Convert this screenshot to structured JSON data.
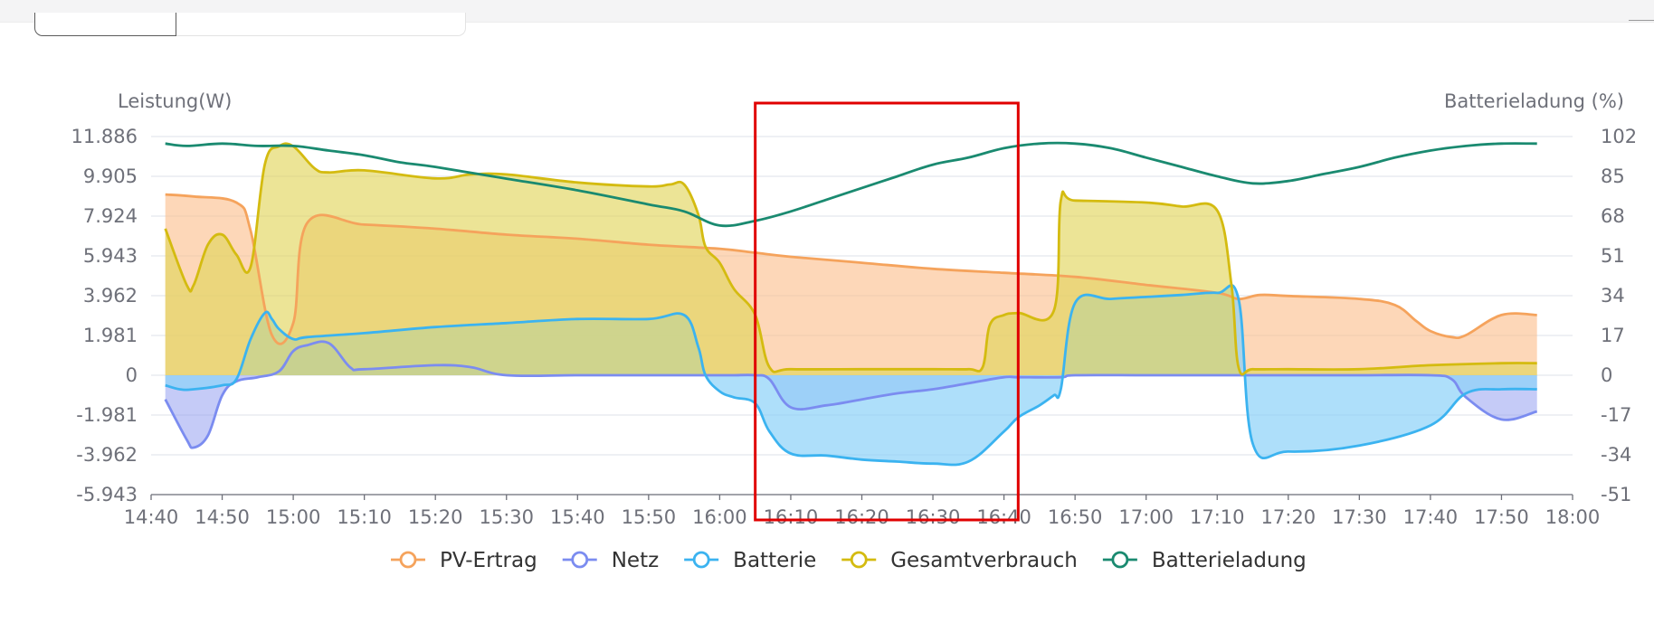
{
  "chart_data": {
    "type": "area",
    "ylabel_left": "Leistung(W)",
    "ylabel_right": "Batterieladung (%)",
    "left_ticks": [
      "11.886",
      "9.905",
      "7.924",
      "5.943",
      "3.962",
      "1.981",
      "0",
      "-1.981",
      "-3.962",
      "-5.943"
    ],
    "right_ticks": [
      "102",
      "85",
      "68",
      "51",
      "34",
      "17",
      "0",
      "-17",
      "-34",
      "-51"
    ],
    "ylim_left": [
      -5943,
      11886
    ],
    "ylim_right": [
      -51,
      102
    ],
    "x_tick_labels": [
      "14:40",
      "14:50",
      "15:00",
      "15:10",
      "15:20",
      "15:30",
      "15:40",
      "15:50",
      "16:00",
      "16:10",
      "16:20",
      "16:30",
      "16:40",
      "16:50",
      "17:00",
      "17:10",
      "17:20",
      "17:30",
      "17:40",
      "17:50",
      "18:00"
    ],
    "grid": true,
    "legend_position": "bottom-center",
    "highlight_box": {
      "x_from": "16:05",
      "x_to": "16:42",
      "color": "#e00000"
    },
    "series": [
      {
        "name": "PV-Ertrag",
        "axis": "left",
        "color": "#f5a35c",
        "fill": "rgba(252,190,140,0.62)",
        "x": [
          "14:42",
          "14:46",
          "14:52",
          "14:54",
          "14:57",
          "15:00",
          "15:02",
          "15:10",
          "15:20",
          "15:30",
          "15:40",
          "15:50",
          "16:00",
          "16:05",
          "16:10",
          "16:20",
          "16:30",
          "16:40",
          "16:50",
          "17:00",
          "17:10",
          "17:13",
          "17:16",
          "17:20",
          "17:30",
          "17:35",
          "17:38",
          "17:40",
          "17:43",
          "17:45",
          "17:50",
          "17:55"
        ],
        "values": [
          9000,
          8900,
          8600,
          7200,
          2000,
          2600,
          7600,
          7500,
          7300,
          7000,
          6800,
          6500,
          6300,
          6100,
          5900,
          5600,
          5300,
          5100,
          4900,
          4500,
          4100,
          3800,
          4000,
          3950,
          3800,
          3500,
          2700,
          2200,
          1900,
          2000,
          3000,
          3000
        ]
      },
      {
        "name": "Netz",
        "axis": "left",
        "color": "#7b8cf0",
        "fill": "rgba(150,160,240,0.55)",
        "x": [
          "14:42",
          "14:45",
          "14:46",
          "14:48",
          "14:50",
          "14:52",
          "14:55",
          "14:58",
          "15:00",
          "15:02",
          "15:05",
          "15:08",
          "15:10",
          "15:20",
          "15:25",
          "15:30",
          "15:40",
          "15:50",
          "15:58",
          "16:00",
          "16:02",
          "16:05",
          "16:07",
          "16:10",
          "16:15",
          "16:20",
          "16:25",
          "16:30",
          "16:35",
          "16:40",
          "16:42",
          "16:48",
          "16:50",
          "17:00",
          "17:10",
          "17:20",
          "17:30",
          "17:40",
          "17:43",
          "17:45",
          "17:50",
          "17:55"
        ],
        "values": [
          -1200,
          -3200,
          -3600,
          -3000,
          -1000,
          -300,
          -100,
          200,
          1200,
          1500,
          1600,
          400,
          300,
          500,
          400,
          0,
          0,
          0,
          0,
          0,
          0,
          0,
          -200,
          -1600,
          -1500,
          -1200,
          -900,
          -700,
          -400,
          -100,
          -100,
          -100,
          0,
          0,
          0,
          0,
          0,
          0,
          -200,
          -1100,
          -2200,
          -1800
        ]
      },
      {
        "name": "Batterie",
        "axis": "left",
        "color": "#3bb3f0",
        "fill": "rgba(140,210,248,0.70)",
        "x": [
          "14:42",
          "14:44",
          "14:46",
          "14:50",
          "14:52",
          "14:54",
          "14:56",
          "14:57",
          "14:58",
          "15:00",
          "15:02",
          "15:10",
          "15:20",
          "15:30",
          "15:40",
          "15:50",
          "15:55",
          "15:57",
          "15:58",
          "16:00",
          "16:02",
          "16:05",
          "16:07",
          "16:10",
          "16:15",
          "16:20",
          "16:25",
          "16:30",
          "16:35",
          "16:40",
          "16:42",
          "16:45",
          "16:47",
          "16:48",
          "16:50",
          "16:55",
          "17:00",
          "17:05",
          "17:10",
          "17:13",
          "17:15",
          "17:20",
          "17:30",
          "17:40",
          "17:45",
          "17:50",
          "17:55"
        ],
        "values": [
          -500,
          -700,
          -700,
          -500,
          -200,
          1800,
          3100,
          2800,
          2300,
          1800,
          1900,
          2100,
          2400,
          2600,
          2800,
          2800,
          3000,
          1400,
          0,
          -800,
          -1100,
          -1400,
          -2800,
          -3900,
          -4000,
          -4200,
          -4300,
          -4400,
          -4300,
          -2800,
          -2100,
          -1500,
          -1000,
          -700,
          3600,
          3800,
          3900,
          4000,
          4100,
          3800,
          -3400,
          -3800,
          -3500,
          -2500,
          -900,
          -700,
          -700
        ]
      },
      {
        "name": "Gesamtverbrauch",
        "axis": "left",
        "color": "#d4bb10",
        "fill": "rgba(225,212,90,0.64)",
        "x": [
          "14:42",
          "14:45",
          "14:46",
          "14:48",
          "14:50",
          "14:52",
          "14:54",
          "14:56",
          "14:58",
          "15:00",
          "15:03",
          "15:05",
          "15:10",
          "15:20",
          "15:25",
          "15:30",
          "15:40",
          "15:50",
          "15:53",
          "15:55",
          "15:57",
          "15:58",
          "16:00",
          "16:02",
          "16:05",
          "16:07",
          "16:10",
          "16:20",
          "16:30",
          "16:35",
          "16:37",
          "16:38",
          "16:40",
          "16:42",
          "16:47",
          "16:48",
          "16:50",
          "17:00",
          "17:05",
          "17:10",
          "17:12",
          "17:13",
          "17:15",
          "17:20",
          "17:30",
          "17:40",
          "17:50",
          "17:55"
        ],
        "values": [
          7300,
          4500,
          4500,
          6500,
          7000,
          6000,
          5400,
          10500,
          11400,
          11400,
          10300,
          10100,
          10200,
          9800,
          10000,
          10000,
          9600,
          9400,
          9500,
          9500,
          8000,
          6400,
          5600,
          4300,
          3000,
          400,
          300,
          300,
          300,
          300,
          400,
          2500,
          3000,
          3100,
          3200,
          8700,
          8700,
          8600,
          8400,
          8200,
          4500,
          400,
          300,
          300,
          300,
          500,
          600,
          600
        ]
      },
      {
        "name": "Batterieladung",
        "axis": "right",
        "color": "#1a8a70",
        "fill": "none",
        "x": [
          "14:42",
          "14:45",
          "14:50",
          "14:55",
          "15:00",
          "15:05",
          "15:10",
          "15:15",
          "15:20",
          "15:30",
          "15:40",
          "15:50",
          "15:55",
          "16:00",
          "16:05",
          "16:10",
          "16:15",
          "16:20",
          "16:25",
          "16:30",
          "16:35",
          "16:40",
          "16:45",
          "16:50",
          "16:55",
          "17:00",
          "17:05",
          "17:10",
          "17:15",
          "17:20",
          "17:25",
          "17:30",
          "17:35",
          "17:40",
          "17:45",
          "17:50",
          "17:55"
        ],
        "values": [
          99,
          98,
          99,
          98,
          98,
          96,
          94,
          91,
          89,
          84,
          79,
          73,
          70,
          64,
          66,
          70,
          75,
          80,
          85,
          90,
          93,
          97,
          99,
          99,
          97,
          93,
          89,
          85,
          82,
          83,
          86,
          89,
          93,
          96,
          98,
          99,
          99
        ]
      }
    ]
  }
}
